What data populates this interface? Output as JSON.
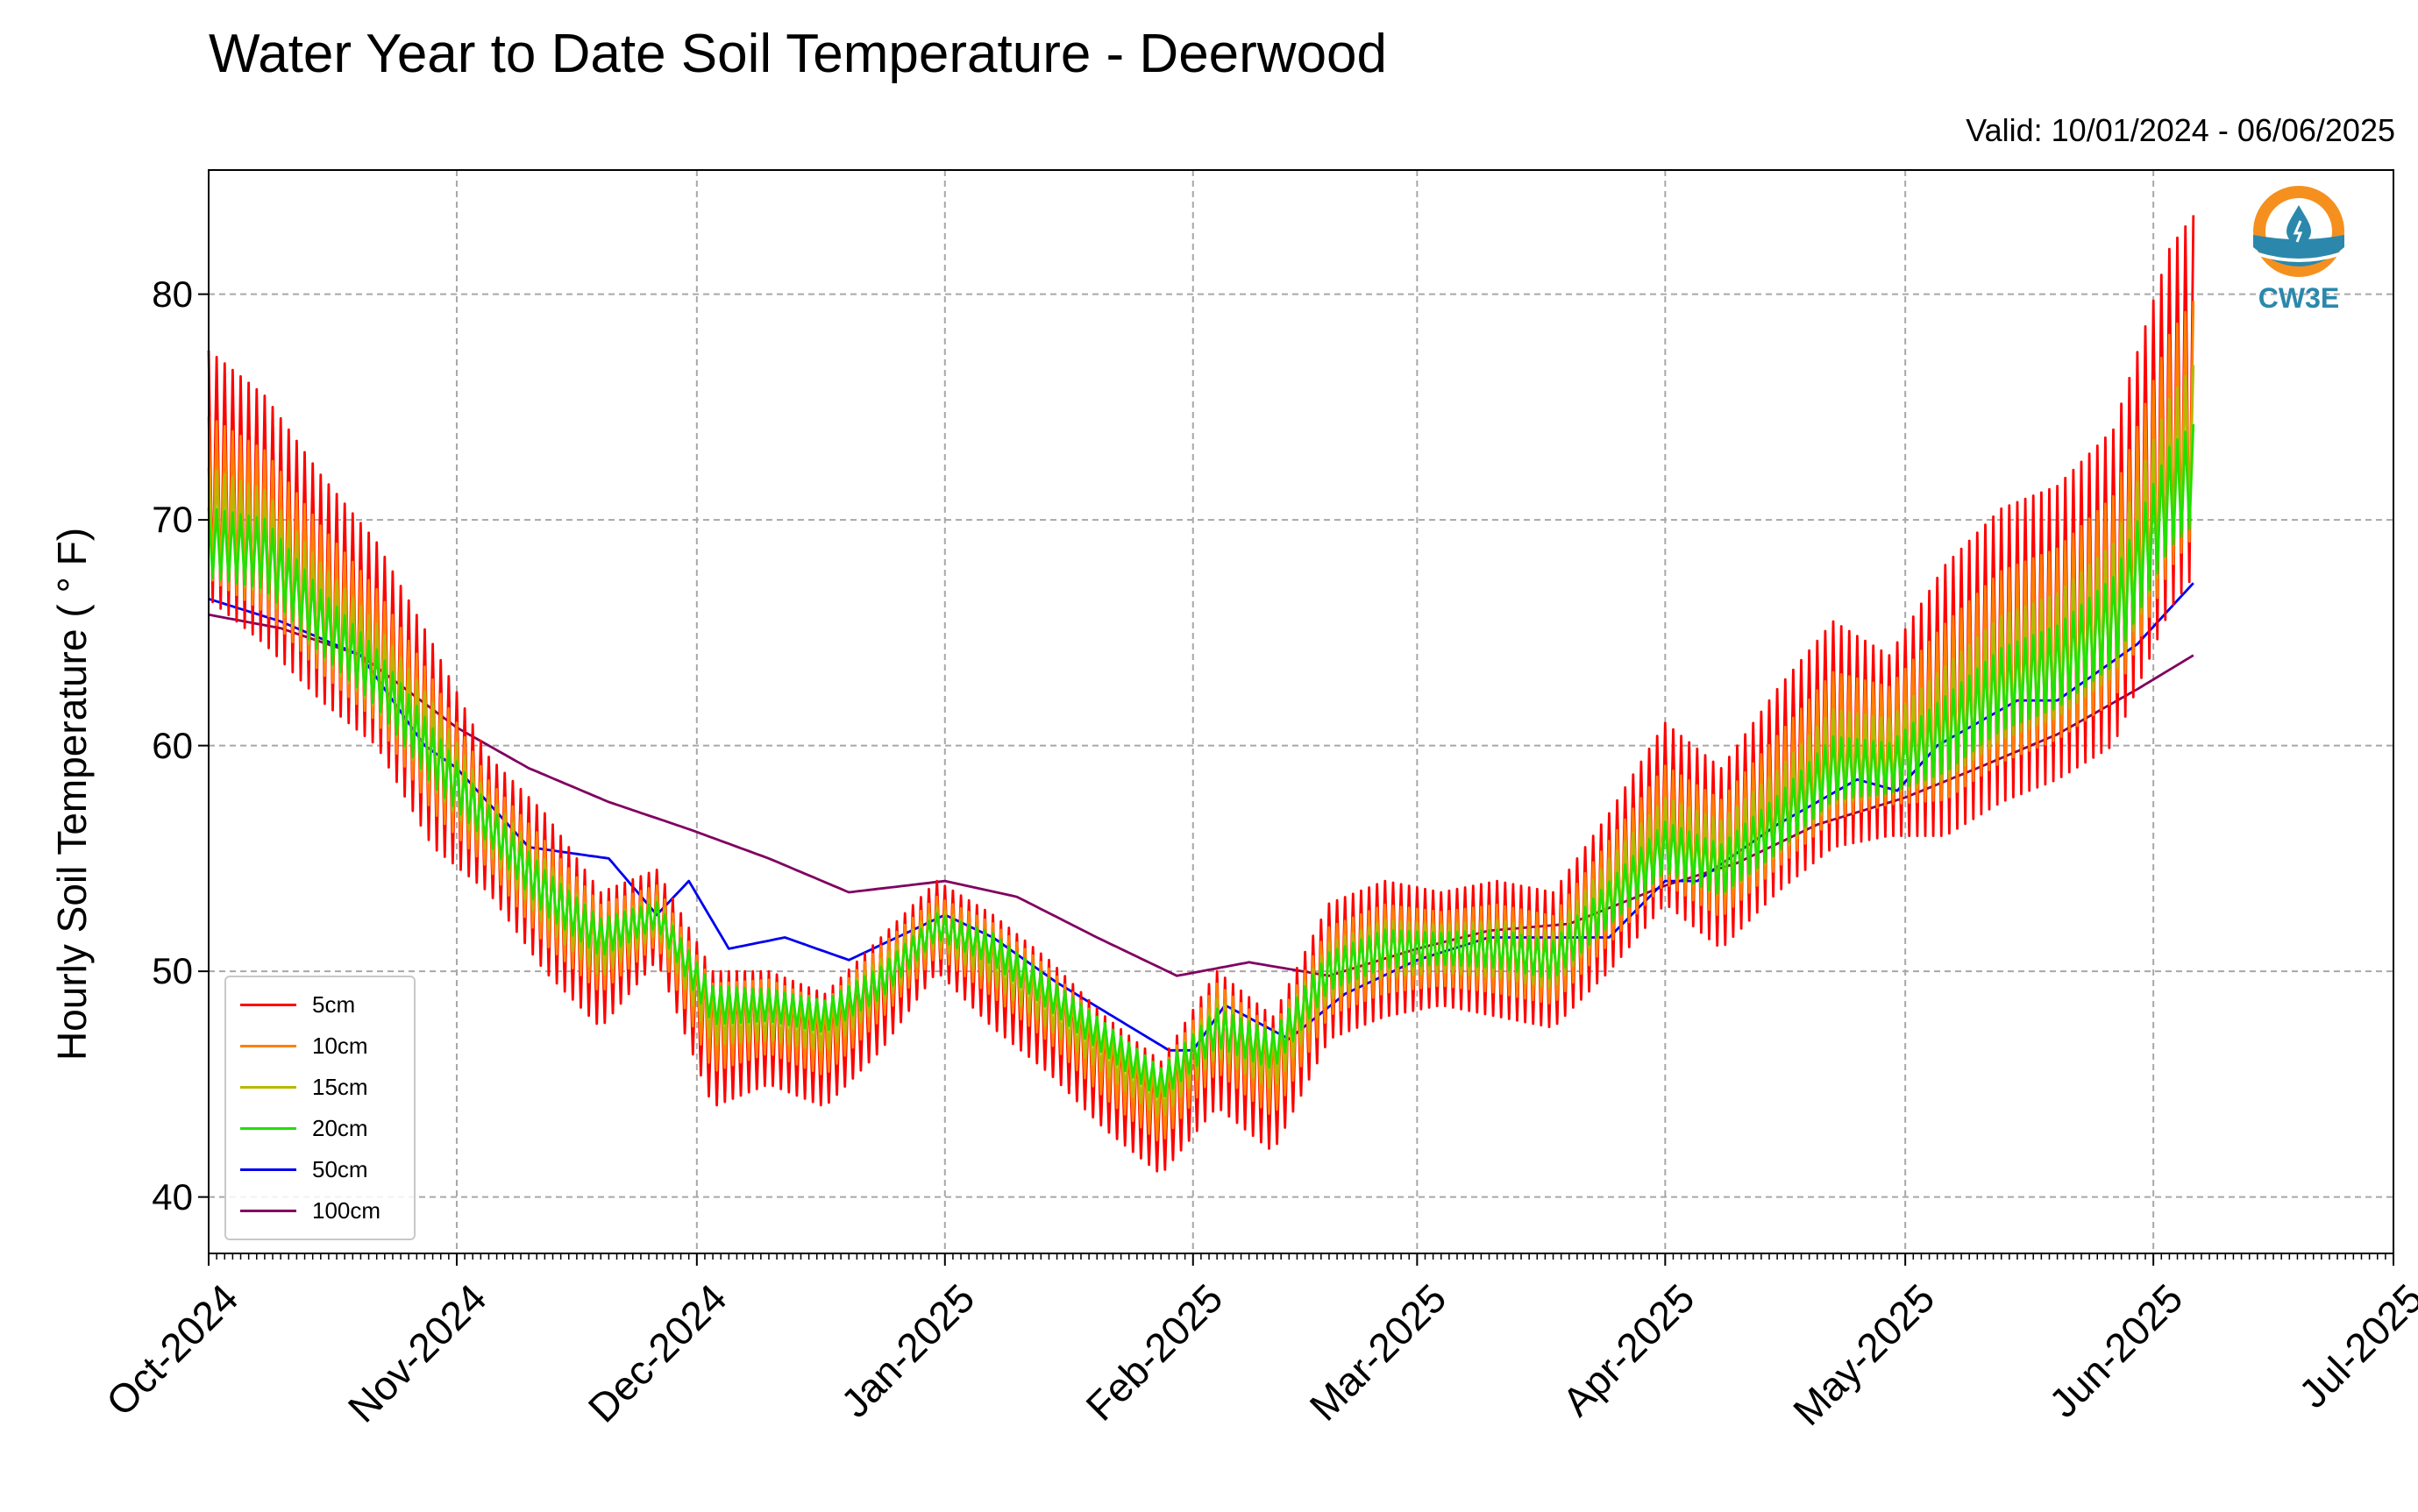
{
  "chart_data": {
    "type": "line",
    "title": "Water Year to Date Soil Temperature - Deerwood",
    "subtitle": "Valid: 10/01/2024 - 06/06/2025",
    "xlabel": "",
    "ylabel": "Hourly Soil Temperature ( ° F)",
    "xlim": [
      "2024-10-01",
      "2025-07-01"
    ],
    "ylim": [
      37.5,
      85.5
    ],
    "x_tick_labels": [
      "Oct-2024",
      "Nov-2024",
      "Dec-2024",
      "Jan-2025",
      "Feb-2025",
      "Mar-2025",
      "Apr-2025",
      "May-2025",
      "Jun-2025",
      "Jul-2025"
    ],
    "y_ticks": [
      40,
      50,
      60,
      70,
      80
    ],
    "grid": true,
    "legend_position": "lower-left",
    "series": [
      {
        "name": "5cm",
        "color": "#ff0000",
        "amplitude": 1.0,
        "dates": [
          "2024-10-01",
          "2024-10-08",
          "2024-10-15",
          "2024-10-22",
          "2024-10-29",
          "2024-11-05",
          "2024-11-12",
          "2024-11-19",
          "2024-11-26",
          "2024-12-03",
          "2024-12-10",
          "2024-12-17",
          "2024-12-24",
          "2024-12-31",
          "2025-01-07",
          "2025-01-14",
          "2025-01-21",
          "2025-01-28",
          "2025-02-04",
          "2025-02-11",
          "2025-02-18",
          "2025-02-25",
          "2025-03-04",
          "2025-03-11",
          "2025-03-18",
          "2025-03-25",
          "2025-04-01",
          "2025-04-08",
          "2025-04-15",
          "2025-04-22",
          "2025-04-29",
          "2025-05-06",
          "2025-05-13",
          "2025-05-20",
          "2025-05-27",
          "2025-06-03",
          "2025-06-06"
        ],
        "values": [
          72.0,
          70.0,
          67.0,
          64.5,
          60.0,
          56.5,
          53.5,
          50.5,
          52.5,
          47.0,
          47.5,
          46.5,
          49.0,
          52.0,
          50.0,
          48.0,
          45.5,
          43.5,
          47.0,
          45.0,
          50.0,
          51.0,
          51.0,
          51.0,
          50.5,
          53.5,
          57.0,
          55.0,
          58.0,
          60.5,
          60.0,
          62.0,
          64.0,
          65.0,
          67.0,
          74.0,
          75.5
        ],
        "swings": [
          5.5,
          5.5,
          5.0,
          4.5,
          4.5,
          3.0,
          3.5,
          3.0,
          2.0,
          3.0,
          2.5,
          2.5,
          2.5,
          2.0,
          2.5,
          2.5,
          2.5,
          2.5,
          3.0,
          3.0,
          3.0,
          3.0,
          2.5,
          3.0,
          3.0,
          3.5,
          4.0,
          4.0,
          4.5,
          5.0,
          4.0,
          6.0,
          6.5,
          6.5,
          7.0,
          8.0,
          8.0
        ]
      },
      {
        "name": "10cm",
        "color": "#ff8000",
        "amplitude": 0.65,
        "dates": [
          "2024-10-01",
          "2024-10-08",
          "2024-10-15",
          "2024-10-22",
          "2024-10-29",
          "2024-11-05",
          "2024-11-12",
          "2024-11-19",
          "2024-11-26",
          "2024-12-03",
          "2024-12-10",
          "2024-12-17",
          "2024-12-24",
          "2024-12-31",
          "2025-01-07",
          "2025-01-14",
          "2025-01-21",
          "2025-01-28",
          "2025-02-04",
          "2025-02-11",
          "2025-02-18",
          "2025-02-25",
          "2025-03-04",
          "2025-03-11",
          "2025-03-18",
          "2025-03-25",
          "2025-04-01",
          "2025-04-08",
          "2025-04-15",
          "2025-04-22",
          "2025-04-29",
          "2025-05-06",
          "2025-05-13",
          "2025-05-20",
          "2025-05-27",
          "2025-06-03",
          "2025-06-06"
        ],
        "values": [
          71.0,
          69.5,
          66.5,
          64.0,
          60.0,
          56.5,
          53.5,
          51.0,
          52.5,
          47.5,
          48.0,
          47.0,
          49.5,
          52.0,
          50.5,
          48.5,
          46.0,
          44.0,
          47.5,
          45.5,
          50.0,
          51.0,
          51.0,
          51.0,
          50.5,
          53.5,
          56.5,
          55.0,
          57.5,
          60.0,
          60.0,
          61.5,
          63.5,
          64.5,
          66.5,
          73.0,
          74.5
        ],
        "swings": [
          5.5,
          5.5,
          5.0,
          4.5,
          4.5,
          3.0,
          3.5,
          3.0,
          2.0,
          3.0,
          2.5,
          2.5,
          2.5,
          2.0,
          2.5,
          2.5,
          2.5,
          2.5,
          3.0,
          3.0,
          3.0,
          3.0,
          2.5,
          3.0,
          3.0,
          3.5,
          4.0,
          4.0,
          4.5,
          5.0,
          4.0,
          6.0,
          6.5,
          6.5,
          7.0,
          8.0,
          8.0
        ]
      },
      {
        "name": "15cm",
        "color": "#b8b800",
        "amplitude": 0.42,
        "dates": [
          "2024-10-01",
          "2024-10-08",
          "2024-10-15",
          "2024-10-22",
          "2024-10-29",
          "2024-11-05",
          "2024-11-12",
          "2024-11-19",
          "2024-11-26",
          "2024-12-03",
          "2024-12-10",
          "2024-12-17",
          "2024-12-24",
          "2024-12-31",
          "2025-01-07",
          "2025-01-14",
          "2025-01-21",
          "2025-01-28",
          "2025-02-04",
          "2025-02-11",
          "2025-02-18",
          "2025-02-25",
          "2025-03-04",
          "2025-03-11",
          "2025-03-18",
          "2025-03-25",
          "2025-04-01",
          "2025-04-08",
          "2025-04-15",
          "2025-04-22",
          "2025-04-29",
          "2025-05-06",
          "2025-05-13",
          "2025-05-20",
          "2025-05-27",
          "2025-06-03",
          "2025-06-06"
        ],
        "values": [
          70.0,
          69.0,
          66.0,
          63.5,
          60.0,
          56.5,
          53.5,
          51.0,
          52.5,
          48.0,
          48.0,
          47.5,
          49.5,
          52.0,
          50.5,
          48.5,
          46.5,
          44.5,
          47.5,
          46.0,
          50.0,
          51.0,
          51.0,
          51.0,
          50.5,
          53.5,
          56.0,
          55.0,
          57.0,
          59.5,
          59.5,
          61.0,
          63.0,
          64.0,
          66.0,
          72.0,
          73.5
        ],
        "swings": [
          5.5,
          5.5,
          5.0,
          4.5,
          4.5,
          3.0,
          3.5,
          3.0,
          2.0,
          3.0,
          2.5,
          2.5,
          2.5,
          2.0,
          2.5,
          2.5,
          2.5,
          2.5,
          3.0,
          3.0,
          3.0,
          3.0,
          2.5,
          3.0,
          3.0,
          3.5,
          4.0,
          4.0,
          4.5,
          5.0,
          4.0,
          6.0,
          6.5,
          6.5,
          7.0,
          8.0,
          8.0
        ]
      },
      {
        "name": "20cm",
        "color": "#22e000",
        "amplitude": 0.28,
        "dates": [
          "2024-10-01",
          "2024-10-08",
          "2024-10-15",
          "2024-10-22",
          "2024-10-29",
          "2024-11-05",
          "2024-11-12",
          "2024-11-19",
          "2024-11-26",
          "2024-12-03",
          "2024-12-10",
          "2024-12-17",
          "2024-12-24",
          "2024-12-31",
          "2025-01-07",
          "2025-01-14",
          "2025-01-21",
          "2025-01-28",
          "2025-02-04",
          "2025-02-11",
          "2025-02-18",
          "2025-02-25",
          "2025-03-04",
          "2025-03-11",
          "2025-03-18",
          "2025-03-25",
          "2025-04-01",
          "2025-04-08",
          "2025-04-15",
          "2025-04-22",
          "2025-04-29",
          "2025-05-06",
          "2025-05-13",
          "2025-05-20",
          "2025-05-27",
          "2025-06-03",
          "2025-06-06"
        ],
        "values": [
          69.0,
          68.5,
          65.5,
          63.0,
          59.5,
          56.5,
          53.5,
          51.5,
          52.5,
          48.5,
          48.5,
          48.0,
          49.5,
          52.0,
          51.0,
          49.0,
          47.0,
          45.0,
          47.5,
          46.5,
          50.0,
          51.0,
          51.0,
          51.0,
          50.5,
          53.0,
          55.5,
          54.5,
          56.5,
          59.0,
          59.0,
          60.5,
          62.5,
          63.5,
          65.5,
          71.0,
          72.0
        ],
        "swings": [
          5.5,
          5.5,
          5.0,
          4.5,
          4.5,
          3.0,
          3.5,
          3.0,
          2.0,
          3.0,
          2.5,
          2.5,
          2.5,
          2.0,
          2.5,
          2.5,
          2.5,
          2.5,
          3.0,
          3.0,
          3.0,
          3.0,
          2.5,
          3.0,
          3.0,
          3.5,
          4.0,
          4.0,
          4.5,
          5.0,
          4.0,
          6.0,
          6.5,
          6.5,
          7.0,
          8.0,
          8.0
        ]
      },
      {
        "name": "50cm",
        "color": "#0000ee",
        "dates": [
          "2024-10-01",
          "2024-10-10",
          "2024-10-20",
          "2024-10-28",
          "2024-11-01",
          "2024-11-10",
          "2024-11-20",
          "2024-11-26",
          "2024-11-30",
          "2024-12-05",
          "2024-12-12",
          "2024-12-20",
          "2025-01-01",
          "2025-01-07",
          "2025-01-15",
          "2025-01-29",
          "2025-02-01",
          "2025-02-05",
          "2025-02-13",
          "2025-02-20",
          "2025-03-01",
          "2025-03-10",
          "2025-03-20",
          "2025-03-25",
          "2025-04-01",
          "2025-04-05",
          "2025-04-15",
          "2025-04-25",
          "2025-04-30",
          "2025-05-05",
          "2025-05-15",
          "2025-05-20",
          "2025-05-30",
          "2025-06-06"
        ],
        "values": [
          66.5,
          65.5,
          64.0,
          60.0,
          59.0,
          55.5,
          55.0,
          52.5,
          54.0,
          51.0,
          51.5,
          50.5,
          52.5,
          51.5,
          49.5,
          46.5,
          46.5,
          48.5,
          47.0,
          49.0,
          50.5,
          51.5,
          51.5,
          51.5,
          54.0,
          54.0,
          56.5,
          58.5,
          58.0,
          60.0,
          62.0,
          62.0,
          64.5,
          67.2
        ]
      },
      {
        "name": "100cm",
        "color": "#800060",
        "dates": [
          "2024-10-01",
          "2024-10-10",
          "2024-10-20",
          "2024-11-01",
          "2024-11-10",
          "2024-11-20",
          "2024-11-30",
          "2024-12-10",
          "2024-12-20",
          "2025-01-01",
          "2025-01-10",
          "2025-01-20",
          "2025-01-30",
          "2025-02-08",
          "2025-02-18",
          "2025-03-01",
          "2025-03-10",
          "2025-03-20",
          "2025-04-01",
          "2025-04-10",
          "2025-04-20",
          "2025-05-01",
          "2025-05-10",
          "2025-05-20",
          "2025-05-30",
          "2025-06-06"
        ],
        "values": [
          65.8,
          65.2,
          64.0,
          60.8,
          59.0,
          57.5,
          56.3,
          55.0,
          53.5,
          54.0,
          53.3,
          51.5,
          49.8,
          50.4,
          49.8,
          51.0,
          51.8,
          52.1,
          53.8,
          54.8,
          56.5,
          57.7,
          59.0,
          60.5,
          62.5,
          64.0
        ]
      }
    ]
  },
  "logo": {
    "text": "CW3E"
  }
}
